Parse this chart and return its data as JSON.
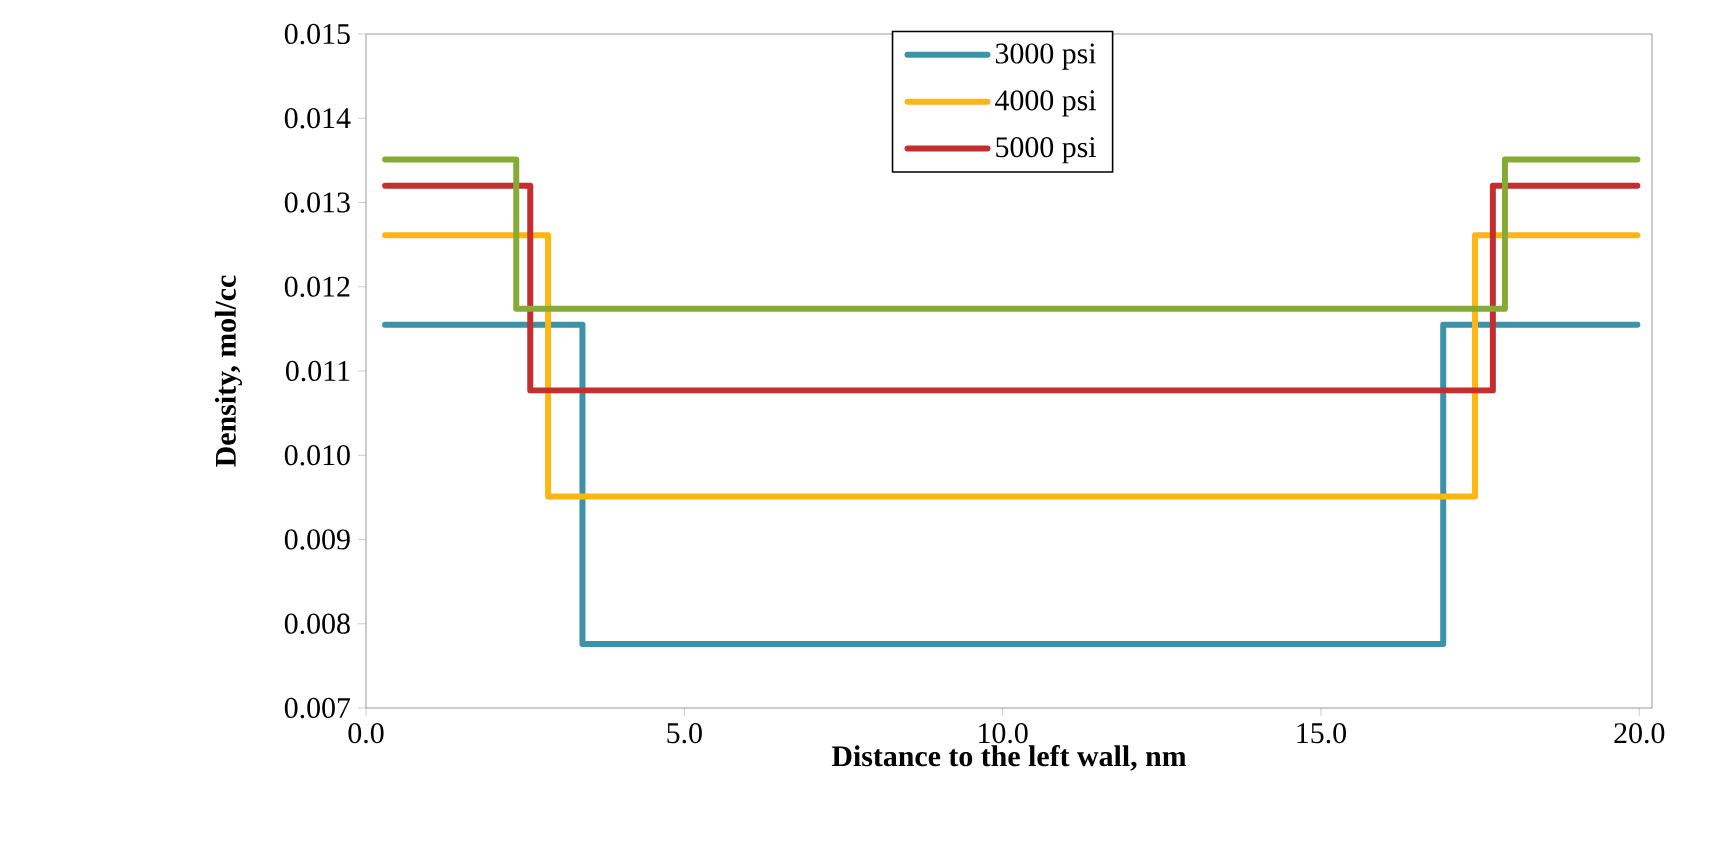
{
  "chart_data": {
    "type": "step",
    "xlabel": "Distance to the left wall, nm",
    "ylabel": "Density, mol/cc",
    "xlim": [
      0,
      20.2
    ],
    "ylim": [
      0.007,
      0.015
    ],
    "xticks": [
      {
        "value": 0,
        "label": "0.0"
      },
      {
        "value": 5,
        "label": "5.0"
      },
      {
        "value": 10,
        "label": "10.0"
      },
      {
        "value": 15,
        "label": "15.0"
      },
      {
        "value": 20,
        "label": "20.0"
      }
    ],
    "yticks": [
      0.007,
      0.008,
      0.009,
      {
        "value": 0.01,
        "label": "0.010"
      },
      0.011,
      0.012,
      0.013,
      0.014,
      0.015
    ],
    "legend": "top",
    "series": [
      {
        "name": "3000 psi",
        "color": "#3a93a8",
        "x": [
          0.3,
          3.4,
          16.92,
          19.97
        ],
        "values": [
          0.01155,
          0.00776,
          0.01155,
          0.01155
        ]
      },
      {
        "name": "4000 psi",
        "color": "#ffb612",
        "x": [
          0.3,
          2.86,
          17.42,
          19.97
        ],
        "values": [
          0.01261,
          0.00951,
          0.01261,
          0.01261
        ]
      },
      {
        "name": "5000 psi",
        "color": "#c42e2f",
        "x": [
          0.3,
          2.58,
          17.7,
          19.97
        ],
        "values": [
          0.0132,
          0.01077,
          0.0132,
          0.0132
        ]
      },
      {
        "color": "#86ab35",
        "x": [
          0.3,
          2.36,
          17.89,
          19.97
        ],
        "values": [
          0.01351,
          0.01174,
          0.01351,
          0.01351
        ]
      }
    ]
  }
}
